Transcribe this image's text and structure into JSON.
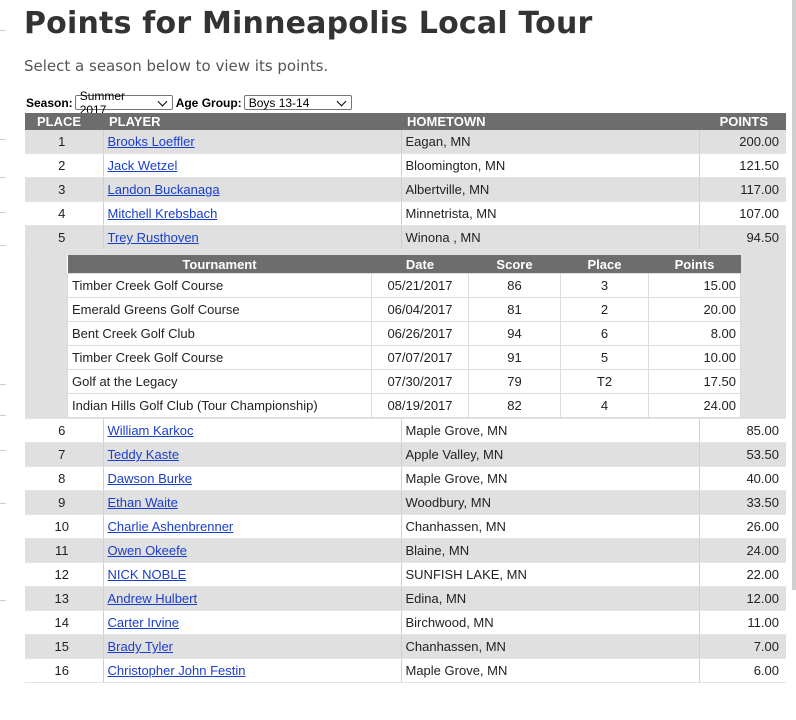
{
  "page": {
    "title": "Points for Minneapolis Local Tour",
    "subtitle": "Select a season below to view its points."
  },
  "filters": {
    "season_label": "Season:",
    "season_value": "Summer 2017",
    "age_group_label": "Age Group:",
    "age_group_value": "Boys 13-14"
  },
  "table": {
    "headers": {
      "place": "PLACE",
      "player": "PLAYER",
      "hometown": "HOMETOWN",
      "points": "POINTS"
    },
    "rows": [
      {
        "place": "1",
        "player": "Brooks Loeffler",
        "hometown": "Eagan, MN",
        "points": "200.00"
      },
      {
        "place": "2",
        "player": "Jack Wetzel",
        "hometown": "Bloomington, MN",
        "points": "121.50"
      },
      {
        "place": "3",
        "player": "Landon Buckanaga",
        "hometown": "Albertville, MN",
        "points": "117.00"
      },
      {
        "place": "4",
        "player": "Mitchell Krebsbach",
        "hometown": "Minnetrista, MN",
        "points": "107.00"
      },
      {
        "place": "5",
        "player": "Trey Rusthoven",
        "hometown": "Winona , MN",
        "points": "94.50"
      },
      {
        "place": "6",
        "player": "William Karkoc",
        "hometown": "Maple Grove, MN",
        "points": "85.00"
      },
      {
        "place": "7",
        "player": "Teddy Kaste",
        "hometown": "Apple Valley, MN",
        "points": "53.50"
      },
      {
        "place": "8",
        "player": "Dawson Burke",
        "hometown": "Maple Grove, MN",
        "points": "40.00"
      },
      {
        "place": "9",
        "player": "Ethan Waite",
        "hometown": "Woodbury, MN",
        "points": "33.50"
      },
      {
        "place": "10",
        "player": "Charlie Ashenbrenner",
        "hometown": "Chanhassen, MN",
        "points": "26.00"
      },
      {
        "place": "11",
        "player": "Owen Okeefe",
        "hometown": "Blaine, MN",
        "points": "24.00"
      },
      {
        "place": "12",
        "player": "NICK NOBLE",
        "hometown": "SUNFISH LAKE, MN",
        "points": "22.00"
      },
      {
        "place": "13",
        "player": "Andrew Hulbert",
        "hometown": "Edina, MN",
        "points": "12.00"
      },
      {
        "place": "14",
        "player": "Carter Irvine",
        "hometown": "Birchwood, MN",
        "points": "11.00"
      },
      {
        "place": "15",
        "player": "Brady Tyler",
        "hometown": "Chanhassen, MN",
        "points": "7.00"
      },
      {
        "place": "16",
        "player": "Christopher John Festin",
        "hometown": "Maple Grove, MN",
        "points": "6.00"
      }
    ]
  },
  "detail": {
    "headers": {
      "tournament": "Tournament",
      "date": "Date",
      "score": "Score",
      "place": "Place",
      "points": "Points"
    },
    "rows": [
      {
        "tournament": "Timber Creek Golf Course",
        "date": "05/21/2017",
        "score": "86",
        "place": "3",
        "points": "15.00"
      },
      {
        "tournament": "Emerald Greens Golf Course",
        "date": "06/04/2017",
        "score": "81",
        "place": "2",
        "points": "20.00"
      },
      {
        "tournament": "Bent Creek Golf Club",
        "date": "06/26/2017",
        "score": "94",
        "place": "6",
        "points": "8.00"
      },
      {
        "tournament": "Timber Creek Golf Course",
        "date": "07/07/2017",
        "score": "91",
        "place": "5",
        "points": "10.00"
      },
      {
        "tournament": "Golf at the Legacy",
        "date": "07/30/2017",
        "score": "79",
        "place": "T2",
        "points": "17.50"
      },
      {
        "tournament": "Indian Hills Golf Club (Tour Championship)",
        "date": "08/19/2017",
        "score": "82",
        "place": "4",
        "points": "24.00"
      }
    ]
  }
}
